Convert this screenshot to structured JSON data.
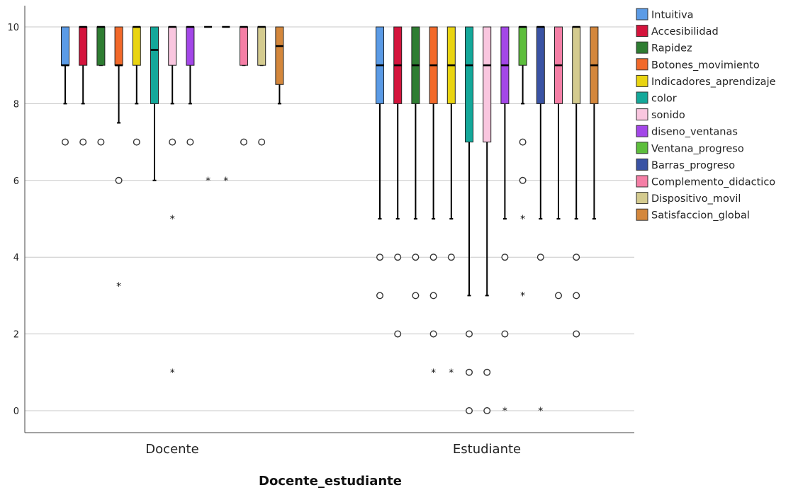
{
  "chart_data": {
    "type": "boxplot",
    "title": "",
    "xlabel": "Docente_estudiante",
    "ylabel": "",
    "ylim": [
      0,
      10
    ],
    "yticks": [
      0,
      2,
      4,
      6,
      8,
      10
    ],
    "grid": "horizontal",
    "legend": "right",
    "categories": [
      "Docente",
      "Estudiante"
    ],
    "series": [
      {
        "name": "Intuitiva",
        "color": "#5B9BE6",
        "boxes": [
          {
            "q1": 9,
            "median": 9,
            "q3": 10,
            "whisker_low": 8,
            "whisker_high": 10,
            "outliers": [
              7
            ],
            "extremes": []
          },
          {
            "q1": 8,
            "median": 9,
            "q3": 10,
            "whisker_low": 5,
            "whisker_high": 10,
            "outliers": [
              4,
              3
            ],
            "extremes": []
          }
        ]
      },
      {
        "name": "Accesibilidad",
        "color": "#D4143C",
        "boxes": [
          {
            "q1": 9,
            "median": 10,
            "q3": 10,
            "whisker_low": 8,
            "whisker_high": 10,
            "outliers": [
              7
            ],
            "extremes": []
          },
          {
            "q1": 8,
            "median": 9,
            "q3": 10,
            "whisker_low": 5,
            "whisker_high": 10,
            "outliers": [
              4,
              2
            ],
            "extremes": []
          }
        ]
      },
      {
        "name": "Rapidez",
        "color": "#2E7D32",
        "boxes": [
          {
            "q1": 9,
            "median": 10,
            "q3": 10,
            "whisker_low": 9,
            "whisker_high": 10,
            "outliers": [
              7
            ],
            "extremes": []
          },
          {
            "q1": 8,
            "median": 9,
            "q3": 10,
            "whisker_low": 5,
            "whisker_high": 10,
            "outliers": [
              4,
              3
            ],
            "extremes": []
          }
        ]
      },
      {
        "name": "Botones_movimiento",
        "color": "#F2692A",
        "boxes": [
          {
            "q1": 9,
            "median": 9,
            "q3": 10,
            "whisker_low": 7.5,
            "whisker_high": 10,
            "outliers": [
              6
            ],
            "extremes": [
              3.25
            ]
          },
          {
            "q1": 8,
            "median": 9,
            "q3": 10,
            "whisker_low": 5,
            "whisker_high": 10,
            "outliers": [
              4,
              3,
              2
            ],
            "extremes": [
              1
            ]
          }
        ]
      },
      {
        "name": "Indicadores_aprendizaje",
        "color": "#E9D411",
        "boxes": [
          {
            "q1": 9,
            "median": 10,
            "q3": 10,
            "whisker_low": 8,
            "whisker_high": 10,
            "outliers": [
              7
            ],
            "extremes": []
          },
          {
            "q1": 8,
            "median": 9,
            "q3": 10,
            "whisker_low": 5,
            "whisker_high": 10,
            "outliers": [
              4
            ],
            "extremes": [
              1
            ]
          }
        ]
      },
      {
        "name": "color",
        "color": "#14A89A",
        "boxes": [
          {
            "q1": 8,
            "median": 9.4,
            "q3": 10,
            "whisker_low": 6,
            "whisker_high": 10,
            "outliers": [],
            "extremes": []
          },
          {
            "q1": 7,
            "median": 9,
            "q3": 10,
            "whisker_low": 3,
            "whisker_high": 10,
            "outliers": [
              2,
              1,
              0
            ],
            "extremes": []
          }
        ]
      },
      {
        "name": "sonido",
        "color": "#F9C6DF",
        "boxes": [
          {
            "q1": 9,
            "median": 10,
            "q3": 10,
            "whisker_low": 8,
            "whisker_high": 10,
            "outliers": [
              7
            ],
            "extremes": [
              5,
              1
            ]
          },
          {
            "q1": 7,
            "median": 9,
            "q3": 10,
            "whisker_low": 3,
            "whisker_high": 10,
            "outliers": [
              1,
              0
            ],
            "extremes": []
          }
        ]
      },
      {
        "name": "diseno_ventanas",
        "color": "#A347E8",
        "boxes": [
          {
            "q1": 9,
            "median": 10,
            "q3": 10,
            "whisker_low": 8,
            "whisker_high": 10,
            "outliers": [
              7
            ],
            "extremes": []
          },
          {
            "q1": 8,
            "median": 9,
            "q3": 10,
            "whisker_low": 5,
            "whisker_high": 10,
            "outliers": [
              4,
              2
            ],
            "extremes": [
              0
            ]
          }
        ]
      },
      {
        "name": "Ventana_progreso",
        "color": "#5DBE3C",
        "boxes": [
          {
            "q1": 10,
            "median": 10,
            "q3": 10,
            "whisker_low": 10,
            "whisker_high": 10,
            "outliers": [],
            "extremes": [
              6
            ]
          },
          {
            "q1": 9,
            "median": 10,
            "q3": 10,
            "whisker_low": 8,
            "whisker_high": 10,
            "outliers": [
              7,
              6
            ],
            "extremes": [
              5,
              3
            ]
          }
        ]
      },
      {
        "name": "Barras_progreso",
        "color": "#3A53A4",
        "boxes": [
          {
            "q1": 10,
            "median": 10,
            "q3": 10,
            "whisker_low": 10,
            "whisker_high": 10,
            "outliers": [],
            "extremes": [
              6
            ]
          },
          {
            "q1": 8,
            "median": 10,
            "q3": 10,
            "whisker_low": 5,
            "whisker_high": 10,
            "outliers": [
              4
            ],
            "extremes": [
              0
            ]
          }
        ]
      },
      {
        "name": "Complemento_didactico",
        "color": "#F57FA6",
        "boxes": [
          {
            "q1": 9,
            "median": 10,
            "q3": 10,
            "whisker_low": 9,
            "whisker_high": 10,
            "outliers": [
              7
            ],
            "extremes": []
          },
          {
            "q1": 8,
            "median": 9,
            "q3": 10,
            "whisker_low": 5,
            "whisker_high": 10,
            "outliers": [
              3
            ],
            "extremes": []
          }
        ]
      },
      {
        "name": "Dispositivo_movil",
        "color": "#D4CB8F",
        "boxes": [
          {
            "q1": 9,
            "median": 10,
            "q3": 10,
            "whisker_low": 9,
            "whisker_high": 10,
            "outliers": [
              7
            ],
            "extremes": []
          },
          {
            "q1": 8,
            "median": 10,
            "q3": 10,
            "whisker_low": 5,
            "whisker_high": 10,
            "outliers": [
              4,
              3,
              2
            ],
            "extremes": []
          }
        ]
      },
      {
        "name": "Satisfaccion_global",
        "color": "#D4873C",
        "boxes": [
          {
            "q1": 8.5,
            "median": 9.5,
            "q3": 10,
            "whisker_low": 8,
            "whisker_high": 10,
            "outliers": [],
            "extremes": []
          },
          {
            "q1": 8,
            "median": 9,
            "q3": 10,
            "whisker_low": 5,
            "whisker_high": 10,
            "outliers": [],
            "extremes": []
          }
        ]
      }
    ]
  }
}
